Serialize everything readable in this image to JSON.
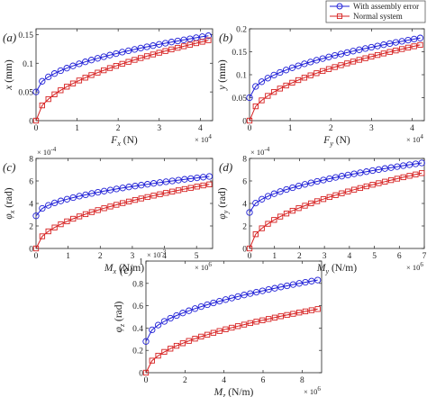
{
  "legend": [
    {
      "name": "With assembly error",
      "color": "#1f1fd6",
      "marker": "circle"
    },
    {
      "name": "Normal system",
      "color": "#d62020",
      "marker": "square"
    }
  ],
  "chart_data": [
    {
      "type": "line",
      "panel_label": "(a)",
      "xlabel": "F_x (N)",
      "xlabel_var": "F",
      "xlabel_sub": "x",
      "xlabel_unit": "(N)",
      "ylabel": "x (mm)",
      "ylabel_var": "x",
      "ylabel_unit": "(mm)",
      "xlim": [
        0,
        4.3
      ],
      "ylim": [
        0,
        0.16
      ],
      "xticks": [
        0,
        1,
        2,
        3,
        4
      ],
      "xtick_labels": [
        "0",
        "1",
        "2",
        "3",
        "4"
      ],
      "yticks": [
        0,
        0.05,
        0.1,
        0.15
      ],
      "ytick_labels": [
        "0",
        "0.05",
        "0.1",
        "0.15"
      ],
      "x_multiplier": "× 10^4",
      "x_exp_base": "× 10",
      "x_exp_pow": "4",
      "n_points": 29,
      "series": [
        {
          "name": "With assembly error",
          "x_range": [
            0,
            4.2
          ],
          "start": 0.05,
          "end": 0.148,
          "shape": "sqrt"
        },
        {
          "name": "Normal system",
          "x_range": [
            0,
            4.2
          ],
          "start": 0.0,
          "end": 0.14,
          "shape": "sqrt"
        }
      ]
    },
    {
      "type": "line",
      "panel_label": "(b)",
      "xlabel": "F_y (N)",
      "xlabel_var": "F",
      "xlabel_sub": "y",
      "xlabel_unit": "(N)",
      "ylabel": "y (mm)",
      "ylabel_var": "y",
      "ylabel_unit": "(mm)",
      "xlim": [
        0,
        4.3
      ],
      "ylim": [
        0,
        0.2
      ],
      "xticks": [
        0,
        1,
        2,
        3,
        4
      ],
      "xtick_labels": [
        "0",
        "1",
        "2",
        "3",
        "4"
      ],
      "yticks": [
        0,
        0.05,
        0.1,
        0.15,
        0.2
      ],
      "ytick_labels": [
        "0",
        "0.05",
        "0.1",
        "0.15",
        "0.2"
      ],
      "x_multiplier": "× 10^4",
      "x_exp_base": "× 10",
      "x_exp_pow": "4",
      "n_points": 29,
      "series": [
        {
          "name": "With assembly error",
          "x_range": [
            0,
            4.2
          ],
          "start": 0.05,
          "end": 0.18,
          "shape": "sqrt"
        },
        {
          "name": "Normal system",
          "x_range": [
            0,
            4.2
          ],
          "start": 0.0,
          "end": 0.165,
          "shape": "sqrt"
        }
      ]
    },
    {
      "type": "line",
      "panel_label": "(c)",
      "xlabel": "M_x (N/m)",
      "xlabel_var": "M",
      "xlabel_sub": "x",
      "xlabel_unit": "(N/m)",
      "ylabel": "φ_x (rad)",
      "ylabel_var": "φ",
      "ylabel_sub": "x",
      "ylabel_unit": "(rad)",
      "xlim": [
        0,
        5.5
      ],
      "ylim": [
        0,
        8
      ],
      "xticks": [
        0,
        1,
        2,
        3,
        4,
        5
      ],
      "xtick_labels": [
        "0",
        "1",
        "2",
        "3",
        "4",
        "5"
      ],
      "yticks": [
        0,
        2,
        4,
        6,
        8
      ],
      "ytick_labels": [
        "0",
        "2",
        "4",
        "6",
        "8"
      ],
      "x_multiplier": "× 10^6",
      "x_exp_base": "× 10",
      "x_exp_pow": "6",
      "y_multiplier": "× 10^-4",
      "y_exp_base": "× 10",
      "y_exp_pow": "-4",
      "n_points": 29,
      "series": [
        {
          "name": "With assembly error",
          "x_range": [
            0,
            5.4
          ],
          "start": 2.9,
          "end": 6.4,
          "shape": "sqrt"
        },
        {
          "name": "Normal system",
          "x_range": [
            0,
            5.4
          ],
          "start": 0.0,
          "end": 5.7,
          "shape": "sqrt"
        }
      ]
    },
    {
      "type": "line",
      "panel_label": "(d)",
      "xlabel": "M_y (N/m)",
      "xlabel_var": "M",
      "xlabel_sub": "y",
      "xlabel_unit": "(N/m)",
      "ylabel": "φ_y (rad)",
      "ylabel_var": "φ",
      "ylabel_sub": "y",
      "ylabel_unit": "(rad)",
      "xlim": [
        0,
        7
      ],
      "ylim": [
        0,
        8
      ],
      "xticks": [
        0,
        1,
        2,
        3,
        4,
        5,
        6,
        7
      ],
      "xtick_labels": [
        "0",
        "1",
        "2",
        "3",
        "4",
        "5",
        "6",
        "7"
      ],
      "yticks": [
        0,
        2,
        4,
        6,
        8
      ],
      "ytick_labels": [
        "0",
        "2",
        "4",
        "6",
        "8"
      ],
      "x_multiplier": "× 10^6",
      "x_exp_base": "× 10",
      "x_exp_pow": "6",
      "y_multiplier": "× 10^-4",
      "y_exp_base": "× 10",
      "y_exp_pow": "-4",
      "n_points": 29,
      "series": [
        {
          "name": "With assembly error",
          "x_range": [
            0,
            6.9
          ],
          "start": 3.2,
          "end": 7.6,
          "shape": "sqrt"
        },
        {
          "name": "Normal system",
          "x_range": [
            0,
            6.9
          ],
          "start": 0.0,
          "end": 6.7,
          "shape": "sqrt"
        }
      ]
    },
    {
      "type": "line",
      "panel_label": "(e)",
      "xlabel": "M_z (N/m)",
      "xlabel_var": "M",
      "xlabel_sub": "z",
      "xlabel_unit": "(N/m)",
      "ylabel": "φ_z (rad)",
      "ylabel_var": "φ",
      "ylabel_sub": "z",
      "ylabel_unit": "(rad)",
      "xlim": [
        0,
        9
      ],
      "ylim": [
        0,
        1
      ],
      "xticks": [
        0,
        2,
        4,
        6,
        8
      ],
      "xtick_labels": [
        "0",
        "2",
        "4",
        "6",
        "8"
      ],
      "yticks": [
        0,
        0.2,
        0.4,
        0.6,
        0.8,
        1
      ],
      "ytick_labels": [
        "0",
        "0.2",
        "0.4",
        "0.6",
        "0.8",
        "1"
      ],
      "x_multiplier": "× 10^6",
      "x_exp_base": "× 10",
      "x_exp_pow": "6",
      "y_multiplier": "× 10^-3",
      "y_exp_base": "× 10",
      "y_exp_pow": "-3",
      "n_points": 29,
      "series": [
        {
          "name": "With assembly error",
          "x_range": [
            0,
            8.8
          ],
          "start": 0.28,
          "end": 0.83,
          "shape": "sqrt"
        },
        {
          "name": "Normal system",
          "x_range": [
            0,
            8.8
          ],
          "start": 0.0,
          "end": 0.57,
          "shape": "sqrt"
        }
      ]
    }
  ]
}
